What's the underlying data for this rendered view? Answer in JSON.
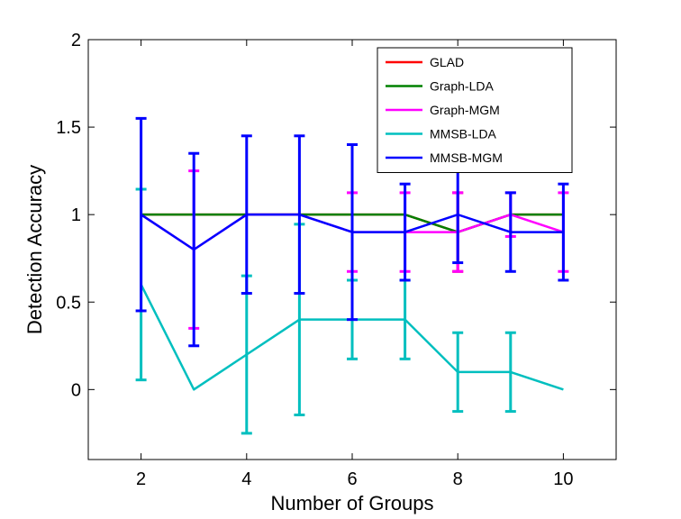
{
  "chart_data": {
    "type": "line",
    "xlabel": "Number of Groups",
    "ylabel": "Detection Accuracy",
    "xlim": [
      1,
      11
    ],
    "ylim": [
      -0.4,
      2
    ],
    "xticks": [
      2,
      4,
      6,
      8,
      10
    ],
    "yticks": [
      0,
      0.5,
      1,
      1.5,
      2
    ],
    "xtick_labels": [
      "2",
      "4",
      "6",
      "8",
      "10"
    ],
    "ytick_labels": [
      "0",
      "0.5",
      "1",
      "1.5",
      "2"
    ],
    "grid": false,
    "legend_position": "top-right",
    "x": [
      2,
      3,
      4,
      5,
      6,
      7,
      8,
      9,
      10
    ],
    "series": [
      {
        "name": "GLAD",
        "color": "#ff0000",
        "values": [
          1,
          1,
          1,
          1,
          1,
          1,
          0.9,
          1,
          1
        ],
        "errors": [
          0,
          0,
          0,
          0,
          0,
          0,
          0.225,
          0,
          0
        ]
      },
      {
        "name": "Graph-LDA",
        "color": "#008000",
        "values": [
          1,
          1,
          1,
          1,
          1,
          1,
          0.9,
          1,
          1
        ],
        "errors": [
          0,
          0,
          0,
          0,
          0,
          0,
          0,
          0,
          0
        ]
      },
      {
        "name": "Graph-MGM",
        "color": "#ff00ff",
        "values": [
          1,
          0.8,
          1,
          1,
          0.9,
          0.9,
          0.9,
          1,
          0.9
        ],
        "errors": [
          0,
          0.45,
          0,
          0,
          0.225,
          0.225,
          0.225,
          0.125,
          0.225
        ]
      },
      {
        "name": "MMSB-LDA",
        "color": "#00bfbf",
        "values": [
          0.6,
          0,
          0.2,
          0.4,
          0.4,
          0.4,
          0.1,
          0.1,
          0
        ],
        "errors": [
          0.545,
          0,
          0.45,
          0.545,
          0.225,
          0.225,
          0.225,
          0.225,
          0
        ]
      },
      {
        "name": "MMSB-MGM",
        "color": "#0000ff",
        "values": [
          1,
          0.8,
          1,
          1,
          0.9,
          0.9,
          1,
          0.9,
          0.9
        ],
        "errors": [
          0.55,
          0.55,
          0.45,
          0.45,
          0.5,
          0.275,
          0.275,
          0.225,
          0.275
        ]
      }
    ]
  }
}
